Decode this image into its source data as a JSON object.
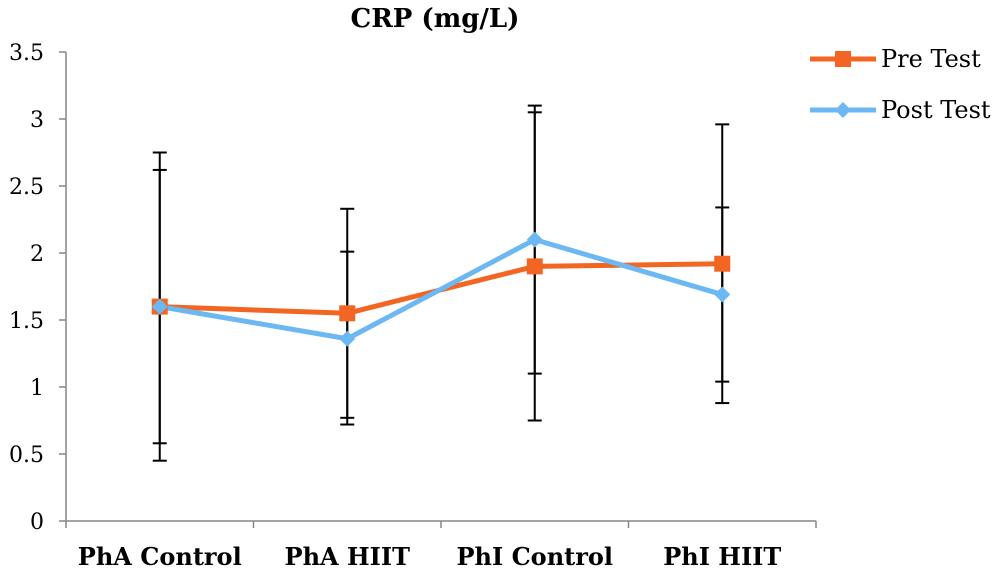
{
  "chart_data": {
    "type": "line",
    "title": "CRP (mg/L)",
    "categories": [
      "PhA Control",
      "PhA HIIT",
      "PhI Control",
      "PhI HIIT"
    ],
    "ylim": [
      0,
      3.5
    ],
    "yticks": [
      "0",
      "0.5",
      "1",
      "1.5",
      "2",
      "2.5",
      "3",
      "3.5"
    ],
    "ytick_values": [
      0,
      0.5,
      1,
      1.5,
      2,
      2.5,
      3,
      3.5
    ],
    "grid": false,
    "legend_position": "top-right",
    "series": [
      {
        "name": "Pre Test",
        "color": "#F26522",
        "marker": "square",
        "values": [
          1.6,
          1.55,
          1.9,
          1.92
        ],
        "error_low": [
          0.58,
          0.77,
          1.1,
          1.04
        ],
        "error_high": [
          2.62,
          2.33,
          3.05,
          2.96
        ]
      },
      {
        "name": "Post Test",
        "color": "#6BB8F2",
        "marker": "diamond",
        "values": [
          1.6,
          1.36,
          2.1,
          1.69
        ],
        "error_low": [
          0.45,
          0.72,
          0.75,
          0.88
        ],
        "error_high": [
          2.75,
          2.01,
          3.1,
          2.34
        ]
      }
    ]
  }
}
